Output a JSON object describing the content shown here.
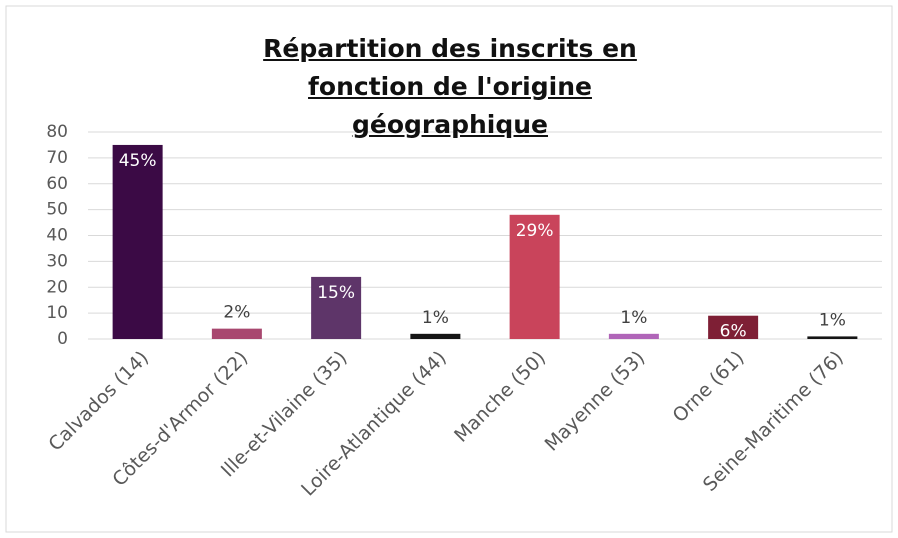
{
  "chart_data": {
    "type": "bar",
    "title": "Répartition des inscrits en fonction de l'origine géographique",
    "categories": [
      "Calvados (14)",
      "Côtes-d'Armor (22)",
      "Ille-et-Vilaine (35)",
      "Loire-Atlantique (44)",
      "Manche (50)",
      "Mayenne (53)",
      "Orne (61)",
      "Seine-Maritime (76)"
    ],
    "values": [
      75,
      4,
      24,
      2,
      48,
      2,
      9,
      1
    ],
    "percent_labels": [
      "45%",
      "2%",
      "15%",
      "1%",
      "29%",
      "1%",
      "6%",
      "1%"
    ],
    "colors": [
      "#3b0a45",
      "#a8476f",
      "#5e3569",
      "#151515",
      "#c9445b",
      "#b065b8",
      "#7e1f35",
      "#151515"
    ],
    "ylim": [
      0,
      80
    ],
    "yticks": [
      0,
      10,
      20,
      30,
      40,
      50,
      60,
      70,
      80
    ],
    "grid": true
  }
}
